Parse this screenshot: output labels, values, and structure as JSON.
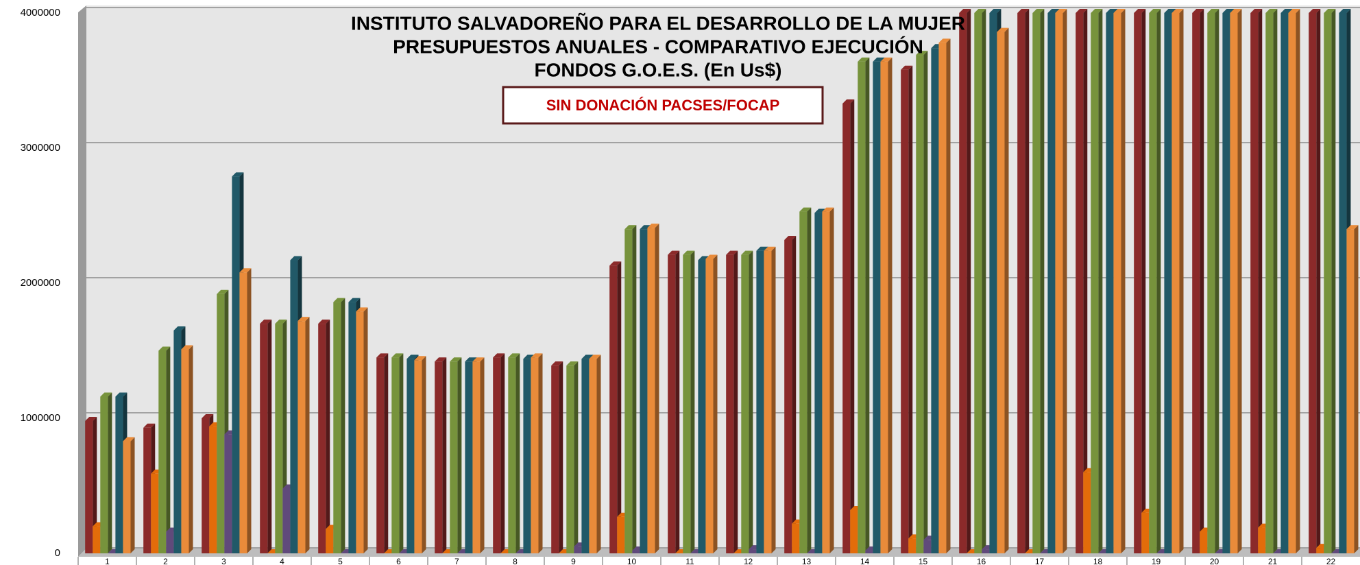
{
  "chart_data": {
    "type": "bar",
    "title": [
      "INSTITUTO SALVADOREÑO PARA EL DESARROLLO DE LA MUJER",
      "PRESUPUESTOS ANUALES - COMPARATIVO EJECUCIÓN",
      "FONDOS G.O.E.S.  (En Us$)"
    ],
    "annotation": "SIN DONACIÓN  PACSES/FOCAP",
    "categories": [
      "1",
      "2",
      "3",
      "4",
      "5",
      "6",
      "7",
      "8",
      "9",
      "10",
      "11",
      "12",
      "13",
      "14",
      "15",
      "16",
      "17",
      "18",
      "19",
      "20",
      "21",
      "22"
    ],
    "series": [
      {
        "color": "#8b2a2a",
        "values": [
          980000,
          930000,
          1000000,
          1700000,
          1700000,
          1450000,
          1420000,
          1450000,
          1390000,
          2130000,
          2210000,
          2210000,
          2320000,
          3330000,
          3580000,
          4000000,
          4000000,
          4000000,
          4000000,
          4000000,
          4000000,
          4000000
        ]
      },
      {
        "color": "#e36c0a",
        "values": [
          200000,
          590000,
          940000,
          0,
          180000,
          0,
          0,
          0,
          0,
          270000,
          0,
          0,
          220000,
          320000,
          110000,
          0,
          0,
          600000,
          300000,
          160000,
          190000,
          40000
        ]
      },
      {
        "color": "#77933c",
        "values": [
          1160000,
          1500000,
          1920000,
          1700000,
          1860000,
          1450000,
          1420000,
          1450000,
          1390000,
          2400000,
          2210000,
          2210000,
          2530000,
          3640000,
          3690000,
          4000000,
          4000000,
          4000000,
          4000000,
          4000000,
          4000000,
          4000000
        ]
      },
      {
        "color": "#604a7b",
        "values": [
          0,
          160000,
          880000,
          480000,
          0,
          0,
          0,
          0,
          50000,
          20000,
          0,
          30000,
          0,
          20000,
          100000,
          30000,
          0,
          0,
          0,
          0,
          0,
          0
        ]
      },
      {
        "color": "#215968",
        "values": [
          1160000,
          1650000,
          2790000,
          2170000,
          1860000,
          1440000,
          1420000,
          1440000,
          1440000,
          2400000,
          2170000,
          2240000,
          2520000,
          3640000,
          3740000,
          4000000,
          4000000,
          4000000,
          4000000,
          4000000,
          4000000,
          4000000
        ]
      },
      {
        "color": "#e98b3a",
        "values": [
          830000,
          1510000,
          2080000,
          1720000,
          1790000,
          1430000,
          1420000,
          1450000,
          1440000,
          2410000,
          2180000,
          2240000,
          2530000,
          3640000,
          3780000,
          3860000,
          4000000,
          4000000,
          4000000,
          4000000,
          4000000,
          2400000
        ]
      }
    ],
    "ylim": [
      0,
      4000000
    ],
    "yticks": [
      0,
      1000000,
      2000000,
      3000000,
      4000000
    ],
    "grid": true
  }
}
